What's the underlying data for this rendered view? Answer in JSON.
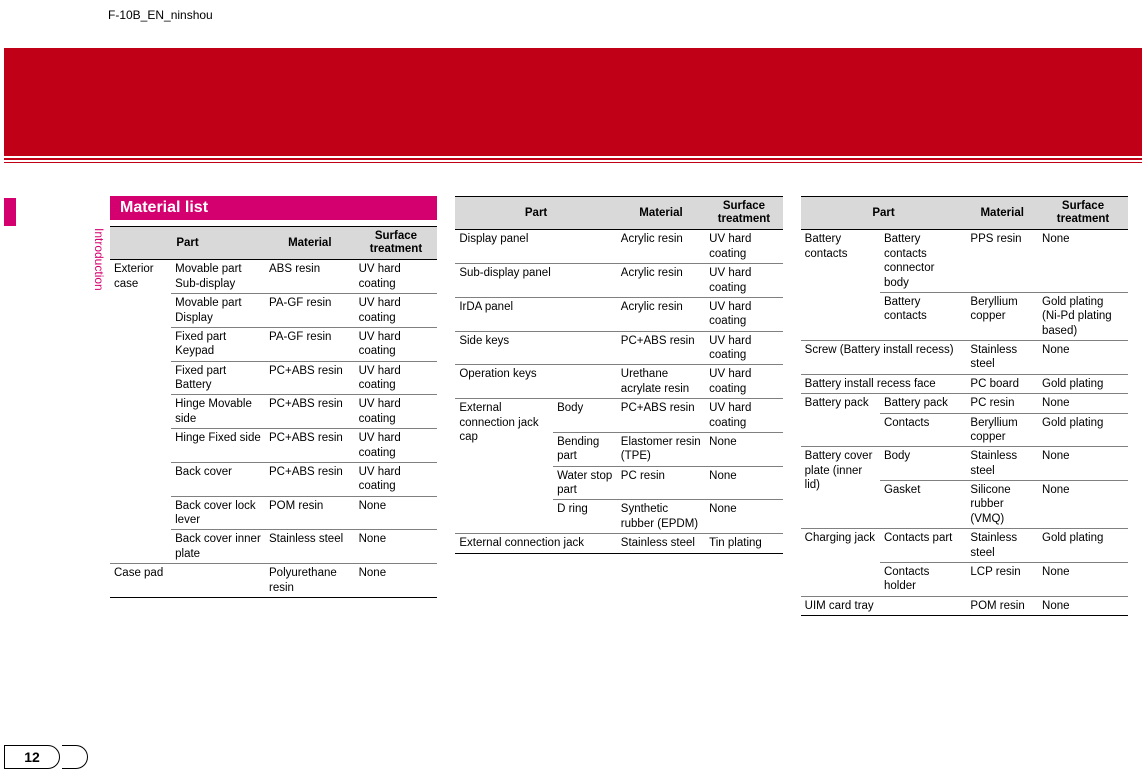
{
  "layout": {
    "sidebar_tab_color": "#d5006f",
    "red_band_color": "#bf0016",
    "header_cell_bg": "#d9d9d9"
  },
  "doc_title": "F-10B_EN_ninshou",
  "page_number": "12",
  "vertical_tab": "Introduction",
  "section_title": "Material list",
  "headers": {
    "part": "Part",
    "material": "Material",
    "treatment": "Surface treatment"
  },
  "col1": [
    {
      "part": "Exterior case",
      "sub": "Movable part Sub-display",
      "material": "ABS resin",
      "treatment": "UV hard coating",
      "rowspan": 9
    },
    {
      "sub": "Movable part Display",
      "material": "PA-GF resin",
      "treatment": "UV hard coating"
    },
    {
      "sub": "Fixed part Keypad",
      "material": "PA-GF resin",
      "treatment": "UV hard coating"
    },
    {
      "sub": "Fixed part Battery",
      "material": "PC+ABS resin",
      "treatment": "UV hard coating"
    },
    {
      "sub": "Hinge Movable side",
      "material": "PC+ABS resin",
      "treatment": "UV hard coating"
    },
    {
      "sub": "Hinge Fixed side",
      "material": "PC+ABS resin",
      "treatment": "UV hard coating"
    },
    {
      "sub": "Back cover",
      "material": "PC+ABS resin",
      "treatment": "UV hard coating"
    },
    {
      "sub": "Back cover lock lever",
      "material": "POM resin",
      "treatment": "None"
    },
    {
      "sub": "Back cover inner plate",
      "material": "Stainless steel",
      "treatment": "None"
    },
    {
      "part": "Case pad",
      "span2": true,
      "material": "Polyurethane resin",
      "treatment": "None"
    }
  ],
  "col2": [
    {
      "part": "Display panel",
      "span2": true,
      "material": "Acrylic resin",
      "treatment": "UV hard coating"
    },
    {
      "part": "Sub-display panel",
      "span2": true,
      "material": "Acrylic resin",
      "treatment": "UV hard coating"
    },
    {
      "part": "IrDA panel",
      "span2": true,
      "material": "Acrylic resin",
      "treatment": "UV hard coating"
    },
    {
      "part": "Side keys",
      "span2": true,
      "material": "PC+ABS resin",
      "treatment": "UV hard coating"
    },
    {
      "part": "Operation keys",
      "span2": true,
      "material": "Urethane acrylate resin",
      "treatment": "UV hard coating"
    },
    {
      "part": "External connection jack cap",
      "sub": "Body",
      "material": "PC+ABS resin",
      "treatment": "UV hard coating",
      "rowspan": 4
    },
    {
      "sub": "Bending part",
      "material": "Elastomer resin (TPE)",
      "treatment": "None"
    },
    {
      "sub": "Water stop part",
      "material": "PC resin",
      "treatment": "None"
    },
    {
      "sub": "D ring",
      "material": "Synthetic rubber (EPDM)",
      "treatment": "None"
    },
    {
      "part": "External connection jack",
      "span2": true,
      "material": "Stainless steel",
      "treatment": "Tin plating"
    }
  ],
  "col3": [
    {
      "part": "Battery contacts",
      "sub": "Battery contacts connector body",
      "material": "PPS resin",
      "treatment": "None",
      "rowspan": 2
    },
    {
      "sub": "Battery contacts",
      "material": "Beryllium copper",
      "treatment": "Gold plating (Ni-Pd plating based)"
    },
    {
      "part": "Screw (Battery install recess)",
      "span2": true,
      "material": "Stainless steel",
      "treatment": "None"
    },
    {
      "part": "Battery install recess face",
      "span2": true,
      "material": "PC board",
      "treatment": "Gold plating"
    },
    {
      "part": "Battery pack",
      "sub": "Battery pack",
      "material": "PC resin",
      "treatment": "None",
      "rowspan": 2
    },
    {
      "sub": "Contacts",
      "material": "Beryllium copper",
      "treatment": "Gold plating"
    },
    {
      "part": "Battery cover plate (inner lid)",
      "sub": "Body",
      "material": "Stainless steel",
      "treatment": "None",
      "rowspan": 2
    },
    {
      "sub": "Gasket",
      "material": "Silicone rubber (VMQ)",
      "treatment": "None"
    },
    {
      "part": "Charging jack",
      "sub": "Contacts part",
      "material": "Stainless steel",
      "treatment": "Gold plating",
      "rowspan": 2
    },
    {
      "sub": "Contacts holder",
      "material": "LCP resin",
      "treatment": "None"
    },
    {
      "part": "UIM card tray",
      "span2": true,
      "material": "POM resin",
      "treatment": "None"
    }
  ]
}
